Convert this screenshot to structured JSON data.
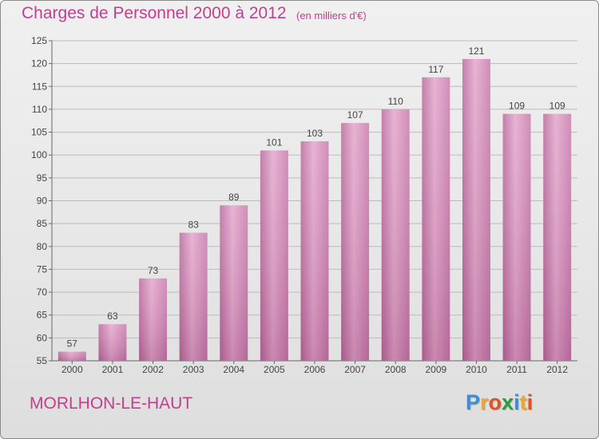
{
  "chart_data": {
    "type": "bar",
    "title": "Charges de Personnel 2000 à 2012",
    "subtitle": "(en milliers d'€)",
    "categories": [
      "2000",
      "2001",
      "2002",
      "2003",
      "2004",
      "2005",
      "2006",
      "2007",
      "2008",
      "2009",
      "2010",
      "2011",
      "2012"
    ],
    "values": [
      57,
      63,
      73,
      83,
      89,
      101,
      103,
      107,
      110,
      117,
      121,
      109,
      109
    ],
    "ylim": [
      55,
      125
    ],
    "yticks": [
      55,
      60,
      65,
      70,
      75,
      80,
      85,
      90,
      95,
      100,
      105,
      110,
      115,
      120,
      125
    ],
    "grid": true,
    "bar_color": "#d98fbd",
    "text_color": "#c13f8e"
  },
  "footer": {
    "place_name": "MORLHON-LE-HAUT",
    "brand": {
      "letters": [
        "P",
        "r",
        "o",
        "x",
        "i",
        "t",
        "i"
      ],
      "colors": [
        "#3a8fd6",
        "#f5a623",
        "#e8501e",
        "#2a9d3f",
        "#3a8fd6",
        "#f5a623",
        "#e8501e"
      ]
    }
  }
}
